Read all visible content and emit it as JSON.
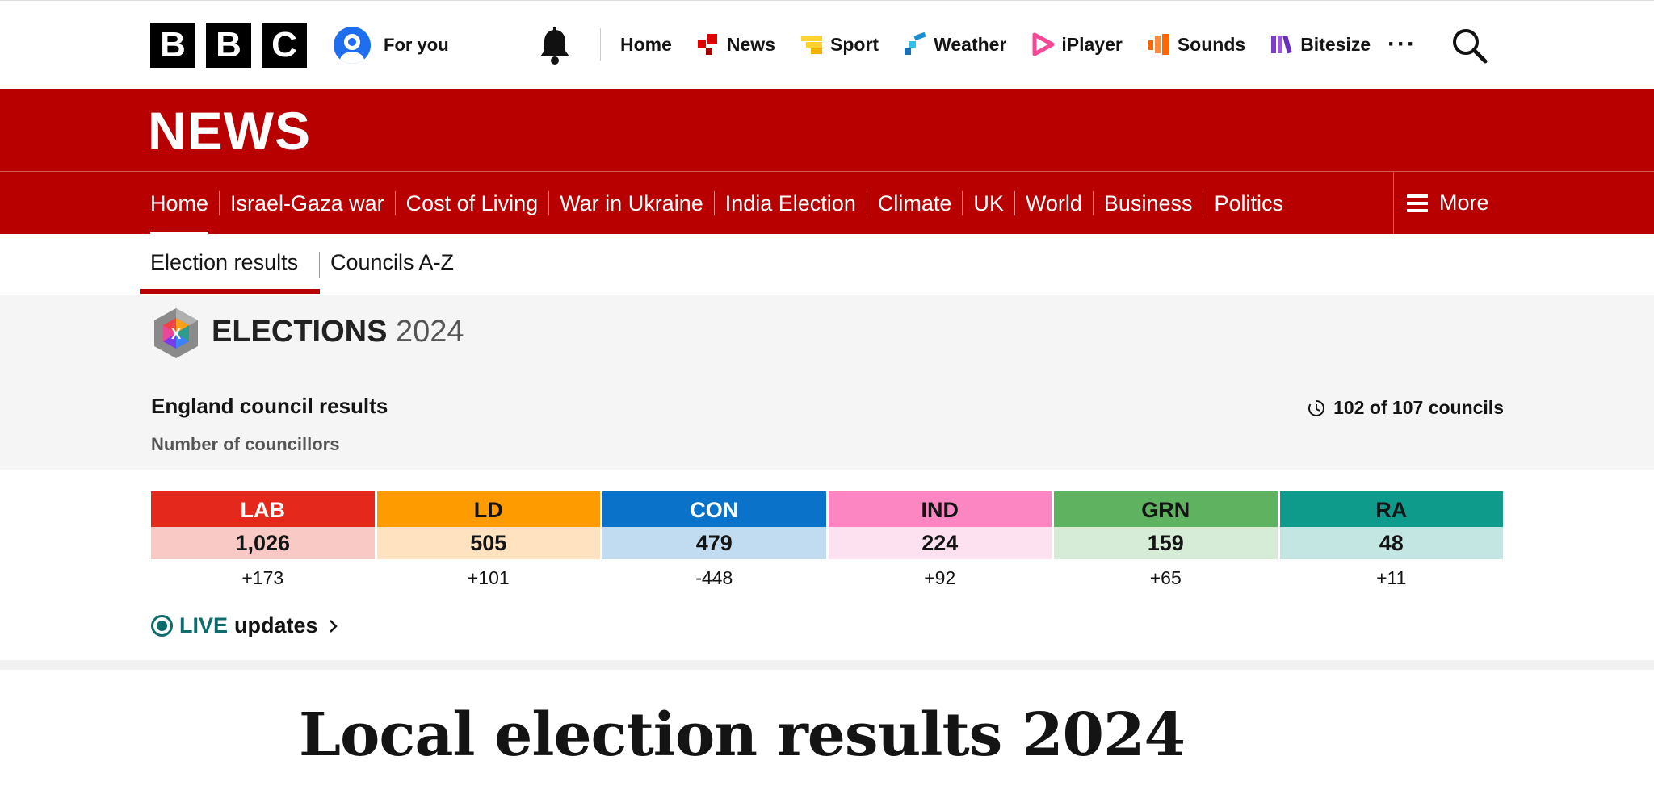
{
  "topbar": {
    "logo_letters": [
      "B",
      "B",
      "C"
    ],
    "for_you": "For you",
    "nav": [
      {
        "label": "Home",
        "icon": "none",
        "color": ""
      },
      {
        "label": "News",
        "icon": "news-icon",
        "color": "#e10000"
      },
      {
        "label": "Sport",
        "icon": "sport-icon",
        "color": "#ffd230"
      },
      {
        "label": "Weather",
        "icon": "weather-icon",
        "color": "#1a8fd1"
      },
      {
        "label": "iPlayer",
        "icon": "iplayer-icon",
        "color": "#f54997"
      },
      {
        "label": "Sounds",
        "icon": "sounds-icon",
        "color": "#ff6600"
      },
      {
        "label": "Bitesize",
        "icon": "bitesize-icon",
        "color": "#7b3ec9"
      }
    ],
    "more": "···"
  },
  "newsbar": {
    "title": "NEWS"
  },
  "subnav": {
    "items": [
      "Home",
      "Israel-Gaza war",
      "Cost of Living",
      "War in Ukraine",
      "India Election",
      "Climate",
      "UK",
      "World",
      "Business",
      "Politics"
    ],
    "more": "More"
  },
  "election_tabs": {
    "results": "Election results",
    "councils": "Councils A-Z"
  },
  "panel": {
    "title_main": "ELECTIONS",
    "title_year": "2024",
    "region": "England council results",
    "subtitle": "Number of councillors",
    "progress": "102 of 107 councils"
  },
  "parties": [
    {
      "abbr": "LAB",
      "value": "1,026",
      "change": "+173",
      "color": "#e4281b",
      "light": "#f9c9c5",
      "text": "#ffffff"
    },
    {
      "abbr": "LD",
      "value": "505",
      "change": "+101",
      "color": "#fe9b00",
      "light": "#ffe3c0",
      "text": "#141414"
    },
    {
      "abbr": "CON",
      "value": "479",
      "change": "-448",
      "color": "#0a72c8",
      "light": "#c1dcf1",
      "text": "#ffffff"
    },
    {
      "abbr": "IND",
      "value": "224",
      "change": "+92",
      "color": "#fc86c2",
      "light": "#fee1f0",
      "text": "#141414"
    },
    {
      "abbr": "GRN",
      "value": "159",
      "change": "+65",
      "color": "#5fb25f",
      "light": "#d7ecd7",
      "text": "#141414"
    },
    {
      "abbr": "RA",
      "value": "48",
      "change": "+11",
      "color": "#0e9b8b",
      "light": "#c3e6e2",
      "text": "#141414"
    }
  ],
  "live": {
    "live": "LIVE",
    "updates": "updates"
  },
  "headline": "Local election results 2024"
}
